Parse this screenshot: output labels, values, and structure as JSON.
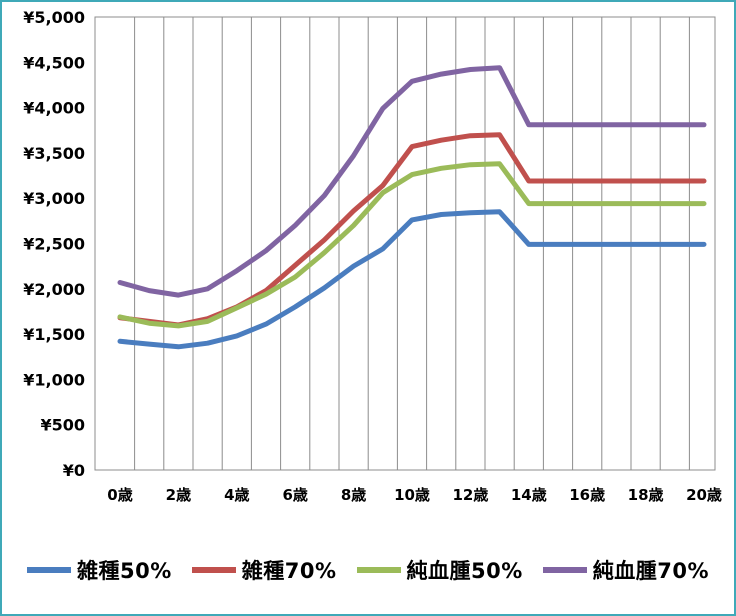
{
  "chart_data": {
    "type": "line",
    "x": [
      "0歳",
      "1歳",
      "2歳",
      "3歳",
      "4歳",
      "5歳",
      "6歳",
      "7歳",
      "8歳",
      "9歳",
      "10歳",
      "11歳",
      "12歳",
      "13歳",
      "14歳",
      "15歳",
      "16歳",
      "17歳",
      "18歳",
      "19歳",
      "20歳"
    ],
    "x_tick_labels": [
      "0歳",
      "2歳",
      "4歳",
      "6歳",
      "8歳",
      "10歳",
      "12歳",
      "14歳",
      "16歳",
      "18歳",
      "20歳"
    ],
    "y_tick_labels": [
      "¥0",
      "¥500",
      "¥1,000",
      "¥1,500",
      "¥2,000",
      "¥2,500",
      "¥3,000",
      "¥3,500",
      "¥4,000",
      "¥4,500",
      "¥5,000"
    ],
    "ylim": [
      0,
      5000
    ],
    "grid": "vertical",
    "legend_position": "bottom",
    "series": [
      {
        "name": "雑種50%",
        "color": "#4a7dbf",
        "values": [
          1420,
          1390,
          1360,
          1400,
          1480,
          1610,
          1800,
          2010,
          2250,
          2440,
          2760,
          2820,
          2840,
          2850,
          2490,
          2490,
          2490,
          2490,
          2490,
          2490,
          2490
        ]
      },
      {
        "name": "雑種70%",
        "color": "#c0504d",
        "values": [
          1680,
          1640,
          1600,
          1670,
          1800,
          1980,
          2260,
          2540,
          2860,
          3140,
          3570,
          3640,
          3690,
          3700,
          3190,
          3190,
          3190,
          3190,
          3190,
          3190,
          3190
        ]
      },
      {
        "name": "純血腫50%",
        "color": "#9bbb59",
        "values": [
          1690,
          1620,
          1590,
          1640,
          1790,
          1940,
          2130,
          2400,
          2700,
          3060,
          3260,
          3330,
          3370,
          3380,
          2940,
          2940,
          2940,
          2940,
          2940,
          2940,
          2940
        ]
      },
      {
        "name": "純血腫70%",
        "color": "#8064a2",
        "values": [
          2070,
          1980,
          1930,
          2000,
          2200,
          2420,
          2700,
          3030,
          3470,
          3990,
          4290,
          4370,
          4420,
          4440,
          3810,
          3810,
          3810,
          3810,
          3810,
          3810,
          3810
        ]
      }
    ]
  }
}
